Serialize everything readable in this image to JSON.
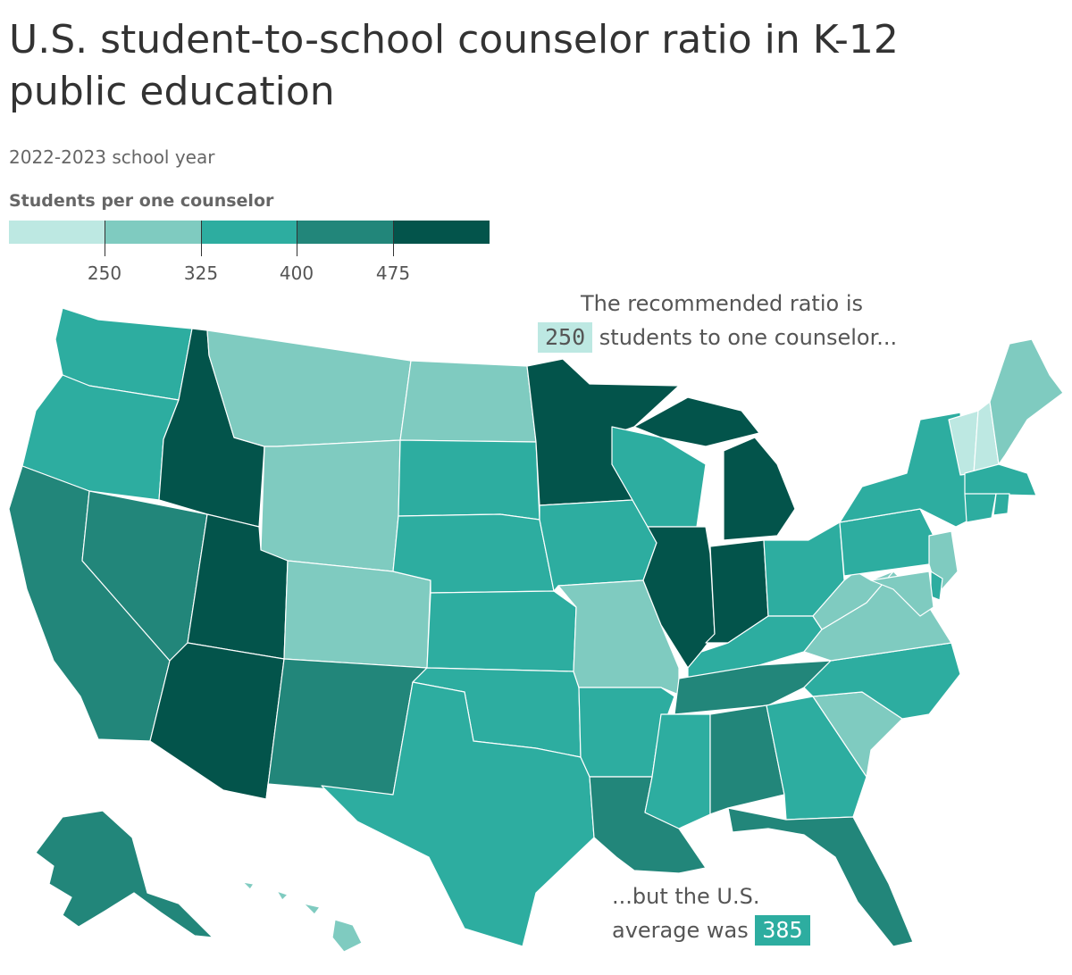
{
  "title": "U.S. student-to-school counselor ratio in K-12 public education",
  "subtitle": "2022-2023 school year",
  "legend": {
    "title": "Students per one counselor",
    "thresholds": [
      "250",
      "325",
      "400",
      "475"
    ],
    "colors": [
      "#bde8e2",
      "#7fcbc0",
      "#2dada0",
      "#22867a",
      "#03544b"
    ]
  },
  "annotations": {
    "top_line1": "The recommended ratio is",
    "top_value": "250",
    "top_line2": "students to one counselor...",
    "bottom_line1": "...but the U.S.",
    "bottom_line2": "average was",
    "bottom_value": "385"
  },
  "states": {
    "WA": 3,
    "OR": 3,
    "CA": 4,
    "NV": 4,
    "ID": 5,
    "MT": 2,
    "WY": 2,
    "UT": 5,
    "AZ": 5,
    "CO": 2,
    "NM": 4,
    "ND": 2,
    "SD": 3,
    "NE": 3,
    "KS": 3,
    "OK": 3,
    "TX": 3,
    "MN": 5,
    "IA": 3,
    "MO": 2,
    "AR": 3,
    "LA": 4,
    "WI": 3,
    "IL": 5,
    "MI": 5,
    "IN": 5,
    "OH": 3,
    "KY": 3,
    "TN": 4,
    "MS": 3,
    "AL": 4,
    "GA": 3,
    "FL": 4,
    "SC": 2,
    "NC": 3,
    "VA": 2,
    "WV": 2,
    "PA": 3,
    "NY": 3,
    "VT": 1,
    "NH": 1,
    "ME": 2,
    "MA": 3,
    "CT": 3,
    "RI": 3,
    "NJ": 2,
    "DE": 3,
    "MD": 2,
    "AK": 4,
    "HI": 2
  }
}
